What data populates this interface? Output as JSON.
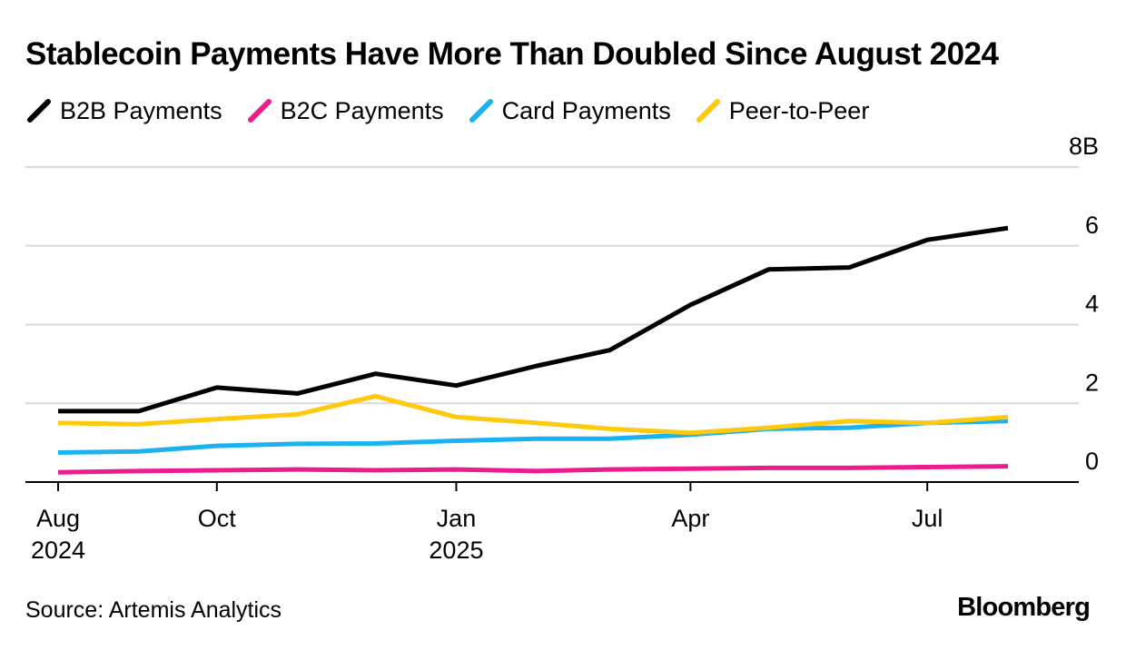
{
  "title": "Stablecoin Payments Have More Than Doubled Since August 2024",
  "source": "Source: Artemis Analytics",
  "brand": "Bloomberg",
  "chart_data": {
    "type": "line",
    "title": "Stablecoin Payments Have More Than Doubled Since August 2024",
    "x": [
      "2024-08-01",
      "2024-09-01",
      "2024-10-01",
      "2024-11-01",
      "2024-12-01",
      "2025-01-01",
      "2025-02-01",
      "2025-03-01",
      "2025-04-01",
      "2025-05-01",
      "2025-06-01",
      "2025-07-01",
      "2025-08-01"
    ],
    "series": [
      {
        "name": "B2B Payments",
        "color": "#000000",
        "values": [
          1.8,
          1.8,
          2.4,
          2.25,
          2.75,
          2.45,
          2.95,
          3.35,
          4.5,
          5.4,
          5.45,
          6.15,
          6.45
        ]
      },
      {
        "name": "B2C Payments",
        "color": "#ee1b8e",
        "values": [
          0.25,
          0.28,
          0.3,
          0.32,
          0.3,
          0.32,
          0.28,
          0.32,
          0.34,
          0.36,
          0.36,
          0.38,
          0.4
        ]
      },
      {
        "name": "Card Payments",
        "color": "#1ab2f0",
        "values": [
          0.75,
          0.78,
          0.92,
          0.97,
          0.98,
          1.05,
          1.1,
          1.1,
          1.2,
          1.35,
          1.38,
          1.5,
          1.55
        ]
      },
      {
        "name": "Peer-to-Peer",
        "color": "#ffc90e",
        "values": [
          1.5,
          1.47,
          1.6,
          1.72,
          2.18,
          1.65,
          1.5,
          1.35,
          1.25,
          1.38,
          1.55,
          1.5,
          1.65
        ]
      }
    ],
    "ylim": [
      0,
      8
    ],
    "y_ticks": [
      0,
      2,
      4,
      6,
      8
    ],
    "y_tick_labels": [
      "0",
      "2",
      "4",
      "6",
      "8B"
    ],
    "x_ticks": [
      {
        "x": "2024-08-01",
        "label": "Aug",
        "sublabel": "2024"
      },
      {
        "x": "2024-10-01",
        "label": "Oct",
        "sublabel": ""
      },
      {
        "x": "2025-01-01",
        "label": "Jan",
        "sublabel": "2025"
      },
      {
        "x": "2025-04-01",
        "label": "Apr",
        "sublabel": ""
      },
      {
        "x": "2025-07-01",
        "label": "Jul",
        "sublabel": ""
      }
    ],
    "xlabel": "",
    "ylabel": "",
    "grid": true,
    "legend": "top-left"
  }
}
